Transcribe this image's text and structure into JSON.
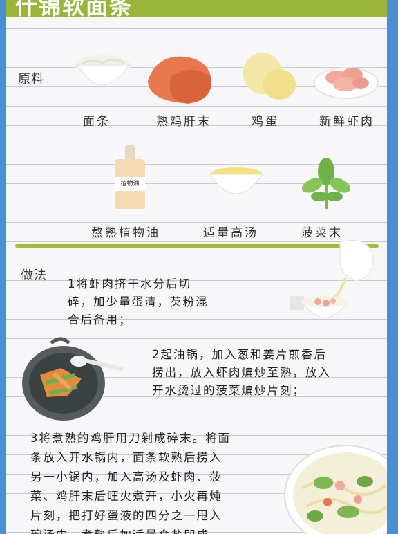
{
  "title": "什锦软面条",
  "ingredients": {
    "heading": "原料",
    "items": [
      {
        "name": "面条"
      },
      {
        "name": "熟鸡肝末"
      },
      {
        "name": "鸡蛋"
      },
      {
        "name": "新鲜虾肉"
      },
      {
        "name": "熬熟植物油",
        "bottle_label": "植物油"
      },
      {
        "name": "适量高汤"
      },
      {
        "name": "菠菜末"
      }
    ]
  },
  "method": {
    "heading": "做法",
    "steps": [
      {
        "lines": [
          "1将虾肉挤干水分后切",
          "碎，加少量蛋清，芡粉混",
          "合后备用；"
        ]
      },
      {
        "lines": [
          "2起油锅，加入葱和姜片煎香后",
          "捞出，放入虾肉煸炒至熟，放入",
          "开水烫过的菠菜煸炒片刻；"
        ]
      },
      {
        "lines": [
          "3将煮熟的鸡肝用刀剁成碎末。将面",
          "条放入开水锅内，面条软熟后捞入",
          "另一小锅内，加入高汤及虾肉、菠",
          "菜、鸡肝末后旺火煮开，小火再炖",
          "片刻，把打好蛋液的四分之一甩入",
          "碗汤内，煮熟后加适量食盐即成。"
        ]
      }
    ]
  },
  "colors": {
    "title_bar": "#9ab53a",
    "divider": "#a6be36",
    "frame": "#4a8fd0"
  }
}
